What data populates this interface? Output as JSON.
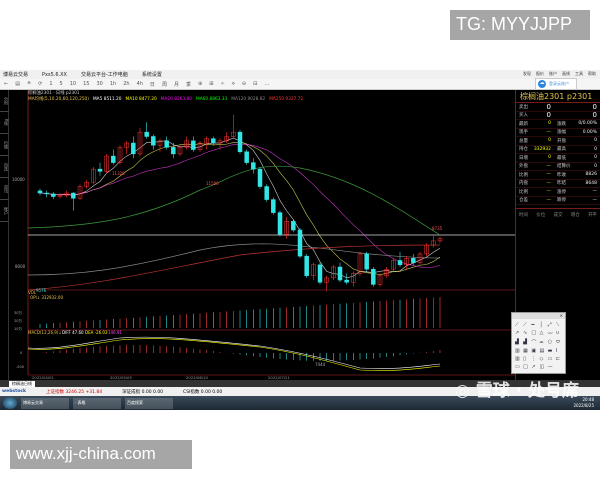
{
  "watermarks": {
    "tg": "TG: MYYJJPP",
    "site": "www.xjj-china.com",
    "xueqiu": "◎ 雪球 · 处号席"
  },
  "window": {
    "title": "博易云交易",
    "version": "Pxs5.6.XX",
    "menu_a": "交易云平台-工作电脑",
    "menu_b": "系统设置",
    "menu": [
      "发现",
      "报价",
      "账户",
      "画线",
      "工具",
      "帮助"
    ],
    "cloud_label": "登录云账户"
  },
  "toolbar": {
    "items": [
      "←",
      "▤",
      "≚",
      "⟳",
      "1",
      "5",
      "10",
      "15",
      "30",
      "1h",
      "2h",
      "4h",
      "日",
      "周",
      "月",
      "季",
      "⊕",
      "⊞",
      "✧",
      "⟡",
      "⊖",
      "⊟",
      "…"
    ]
  },
  "left_tabs": [
    "分时",
    "K线",
    "行情",
    "自选",
    "资讯",
    "账户"
  ],
  "chart_header": {
    "symbol": "棕榈油2301 · 日线 p2301",
    "indicator": "MA均线(5,10,20,60,120,250)",
    "ma": [
      "MA5 8511.20",
      "MA10 8477.20",
      "MA20 8263.80",
      "MA60 8863.33",
      "MA120 9028.82",
      "MA250 9327.72"
    ],
    "colors": [
      "#ffffff",
      "#ffff00",
      "#ff00ff",
      "#00ff00",
      "#888888",
      "#ff3333"
    ]
  },
  "price_axis": [
    "10000",
    "8000"
  ],
  "annotations": {
    "high1": "11328",
    "high2": "11500",
    "low1": "9576",
    "low2": "7444",
    "last": "8735"
  },
  "volume": {
    "label": "VOL",
    "opi": "OPI↓  332932.00",
    "ticks": [
      "30万",
      "20万",
      "10万"
    ]
  },
  "macd": {
    "label": "MACD(12,26,9)↓",
    "diff": "DIFF 47.60",
    "dea": "DEA -26.03",
    "macd": "146.91",
    "ticks": [
      "0",
      "-500"
    ]
  },
  "dates": [
    "2022/04/01",
    "2022/05/05",
    "2022/06/10",
    "2022/07/21"
  ],
  "quote_panel": {
    "title": "棕榈油2301  p2301",
    "top": [
      {
        "l": "卖出",
        "a": "0",
        "b": "0"
      },
      {
        "l": "买入",
        "a": "0",
        "b": "0"
      }
    ],
    "rows": [
      [
        "最新",
        "0",
        "涨跌",
        "0/0.00%"
      ],
      [
        "现手",
        "—",
        "涨幅",
        "0.00%"
      ],
      [
        "总量",
        "0",
        "开盘",
        "0"
      ],
      [
        "持仓",
        "332932",
        "最高",
        "0"
      ],
      [
        "日增",
        "0",
        "最低",
        "0"
      ],
      [
        "外盘",
        "—",
        "结算价",
        "0"
      ],
      [
        "比例",
        "—",
        "昨收",
        "8826"
      ],
      [
        "内盘",
        "—",
        "昨结",
        "8648"
      ],
      [
        "比例",
        "—",
        "涨停",
        "—"
      ],
      [
        "仓差",
        "—",
        "跌停",
        "—"
      ]
    ],
    "trade_header": [
      "时间",
      "价位",
      "成交",
      "增仓",
      "开平"
    ]
  },
  "tabbar": {
    "active": "棕榈油日线"
  },
  "status": {
    "logo": "webstock",
    "sh": "上证指数 3246.25 +31.84",
    "sz": "深证成指 0.00 0.00",
    "csi": "CSI指数 0.00 0.00"
  },
  "taskbar": {
    "tasks": [
      "博易云交易",
      "· 表格",
      "百度搜索"
    ],
    "time": "20:48",
    "date": "2022/8/25"
  },
  "drawing_tools": [
    "⟋",
    "⟋",
    "━",
    "│",
    "⤢",
    "⟍",
    "↗",
    "∿",
    "□",
    "△",
    "〰",
    "∪",
    "▟",
    "▟",
    "⌒",
    "⌓",
    "○",
    "⬭",
    "▥",
    "▦",
    "▣",
    "▤",
    "▬",
    "Ⅰ",
    "▥",
    "▯",
    "⋮",
    "◇",
    "▭",
    "⊏",
    "▭",
    "□",
    "↗",
    "◫",
    "—",
    " "
  ],
  "chart_data": {
    "type": "candlestick",
    "note_colors": {
      "up": "#ff3333",
      "down": "#33e6e6"
    },
    "ohlc": [
      [
        9750,
        9800,
        9650,
        9700
      ],
      [
        9700,
        9760,
        9600,
        9680
      ],
      [
        9680,
        9720,
        9560,
        9620
      ],
      [
        9620,
        9700,
        9576,
        9650
      ],
      [
        9650,
        9760,
        9600,
        9700
      ],
      [
        9700,
        9720,
        9300,
        9580
      ],
      [
        9580,
        9900,
        9550,
        9850
      ],
      [
        9850,
        10000,
        9800,
        9950
      ],
      [
        9950,
        10300,
        9900,
        10250
      ],
      [
        10250,
        10400,
        10100,
        10200
      ],
      [
        10200,
        10600,
        10150,
        10550
      ],
      [
        10550,
        10700,
        10350,
        10400
      ],
      [
        10400,
        10800,
        10350,
        10750
      ],
      [
        10750,
        10900,
        10600,
        10850
      ],
      [
        10850,
        11000,
        10500,
        10600
      ],
      [
        10600,
        11200,
        10550,
        11100
      ],
      [
        11100,
        11328,
        10950,
        11000
      ],
      [
        11000,
        11050,
        10700,
        10800
      ],
      [
        10800,
        10950,
        10650,
        10900
      ],
      [
        10900,
        11000,
        10700,
        10750
      ],
      [
        10750,
        10850,
        10500,
        10600
      ],
      [
        10600,
        10800,
        10550,
        10750
      ],
      [
        10750,
        11000,
        10700,
        10900
      ],
      [
        10900,
        11000,
        10650,
        10700
      ],
      [
        10700,
        10900,
        10650,
        10850
      ],
      [
        10850,
        11000,
        10700,
        10950
      ],
      [
        10950,
        11000,
        10800,
        10850
      ],
      [
        10850,
        10950,
        10700,
        10900
      ],
      [
        10900,
        11100,
        10850,
        11000
      ],
      [
        11000,
        11500,
        10950,
        11100
      ],
      [
        11100,
        11150,
        10600,
        10650
      ],
      [
        10650,
        10700,
        10350,
        10400
      ],
      [
        10400,
        10500,
        10150,
        10250
      ],
      [
        10250,
        10300,
        9800,
        9850
      ],
      [
        9850,
        9900,
        9500,
        9550
      ],
      [
        9550,
        9600,
        9200,
        9250
      ],
      [
        9250,
        9300,
        8700,
        8750
      ],
      [
        8750,
        9150,
        8650,
        9050
      ],
      [
        9050,
        9100,
        8800,
        8850
      ],
      [
        8850,
        8900,
        8200,
        8250
      ],
      [
        8250,
        8300,
        7750,
        7800
      ],
      [
        7800,
        8100,
        7700,
        8050
      ],
      [
        8050,
        8100,
        7600,
        7650
      ],
      [
        7650,
        7800,
        7444,
        7750
      ],
      [
        7750,
        8050,
        7700,
        8000
      ],
      [
        8000,
        8100,
        7650,
        7700
      ],
      [
        7700,
        7850,
        7600,
        7650
      ],
      [
        7650,
        7900,
        7550,
        7850
      ],
      [
        7850,
        8350,
        7800,
        8300
      ],
      [
        8300,
        8350,
        7900,
        7950
      ],
      [
        7950,
        8000,
        7550,
        7600
      ],
      [
        7600,
        7850,
        7550,
        7800
      ],
      [
        7800,
        8000,
        7750,
        7950
      ],
      [
        7950,
        8200,
        7900,
        8150
      ],
      [
        8150,
        8350,
        8000,
        8050
      ],
      [
        8050,
        8250,
        7950,
        8200
      ],
      [
        8200,
        8300,
        8050,
        8100
      ],
      [
        8100,
        8350,
        8050,
        8300
      ],
      [
        8300,
        8550,
        8250,
        8500
      ],
      [
        8500,
        8735,
        8450,
        8600
      ],
      [
        8600,
        8700,
        8550,
        8650
      ]
    ]
  }
}
